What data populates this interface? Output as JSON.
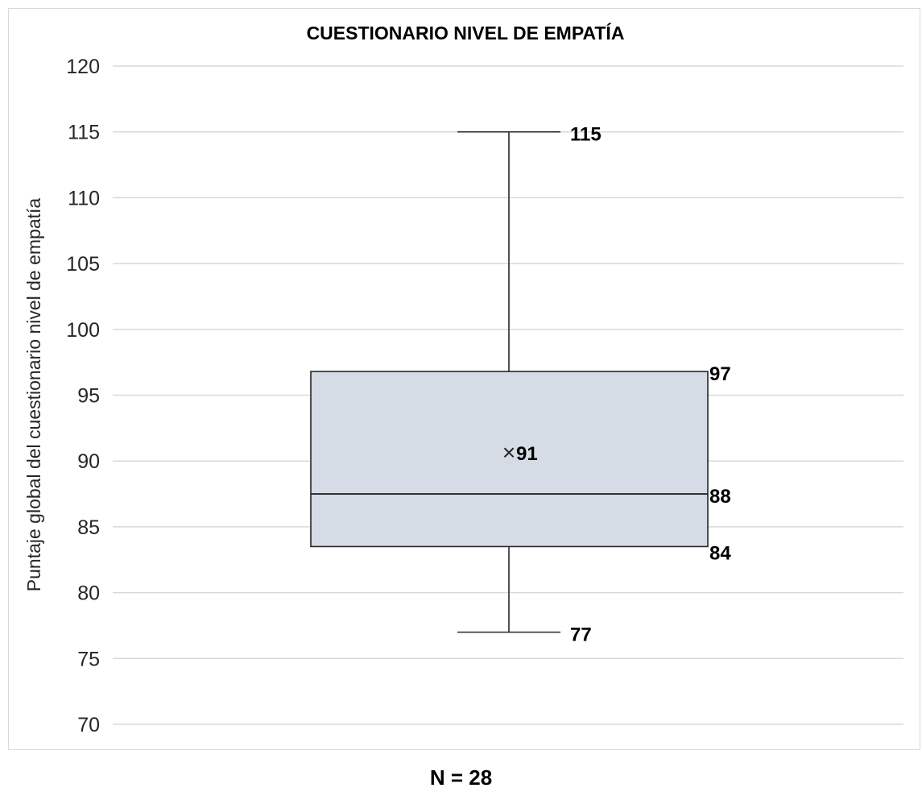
{
  "chart_data": {
    "type": "box",
    "title": "CUESTIONARIO NIVEL DE EMPATÍA",
    "ylabel": "Puntaje global del cuestionario nivel de empatía",
    "xlabel": "",
    "ylim": [
      70,
      120
    ],
    "y_ticks": [
      70,
      75,
      80,
      85,
      90,
      95,
      100,
      105,
      110,
      115,
      120
    ],
    "grid": true,
    "box": {
      "min": 77,
      "q1": 83.5,
      "median": 87.5,
      "q3": 96.8,
      "max": 115,
      "mean": 90.7
    },
    "data_labels": {
      "min": "77",
      "q1": "84",
      "median": "88",
      "q3": "97",
      "max": "115",
      "mean": "91"
    },
    "mean_marker": "×",
    "colors": {
      "box_fill": "#d6dce5",
      "box_stroke": "#262626",
      "gridline": "#d9d9d9"
    }
  },
  "footer": {
    "n_label": "N = 28"
  }
}
